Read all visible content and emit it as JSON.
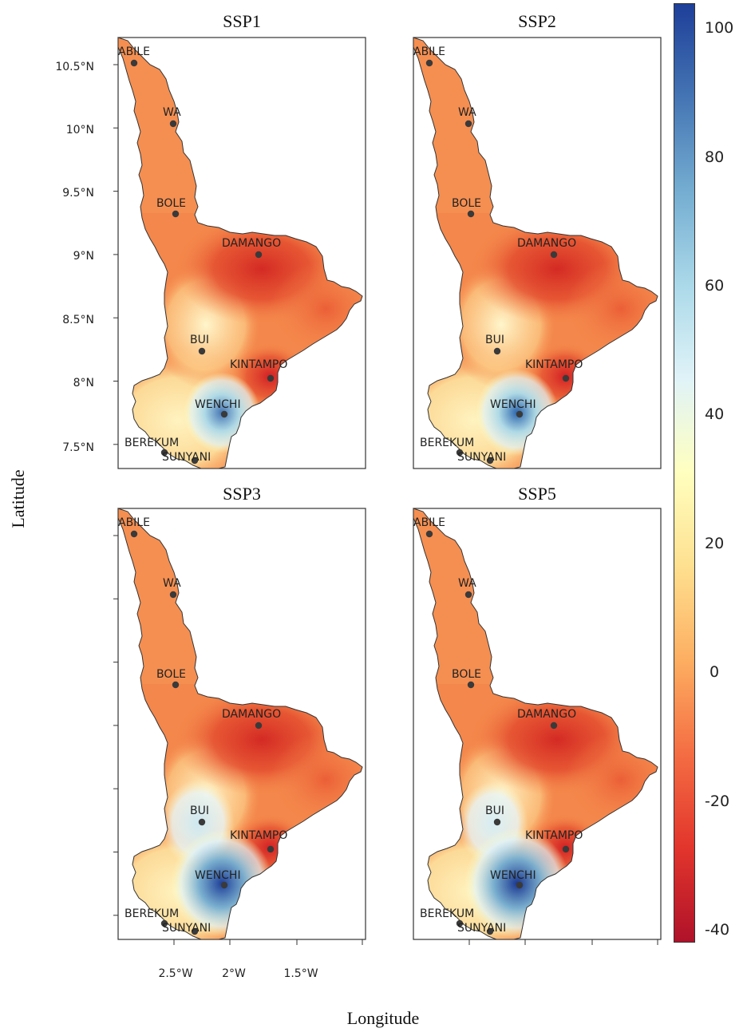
{
  "panels": [
    {
      "title": "SSP1"
    },
    {
      "title": "SSP2"
    },
    {
      "title": "SSP3"
    },
    {
      "title": "SSP5"
    }
  ],
  "axes": {
    "ylabel": "Latitude",
    "xlabel": "Longitude",
    "yticks": [
      "10.5°N",
      "10°N",
      "9.5°N",
      "9°N",
      "8.5°N",
      "8°N",
      "7.5°N"
    ],
    "xticks": [
      "2.5°W",
      "2°W",
      "1.5°W"
    ]
  },
  "colorbar": {
    "labels": [
      "100",
      "80",
      "60",
      "40",
      "20",
      "0",
      "-20",
      "-40"
    ],
    "range": [
      -42,
      104
    ],
    "colors": [
      "#b0122a",
      "#e2352c",
      "#f46d43",
      "#fdae61",
      "#fee090",
      "#ffffbf",
      "#e0f3f8",
      "#abd9e9",
      "#74add1",
      "#4575b4",
      "#1e3f99"
    ]
  },
  "cities": [
    "ABILE",
    "WA",
    "BOLE",
    "DAMANGO",
    "BUI",
    "KINTAMPO",
    "WENCHI",
    "BEREKUM",
    "SUNYANI"
  ]
}
